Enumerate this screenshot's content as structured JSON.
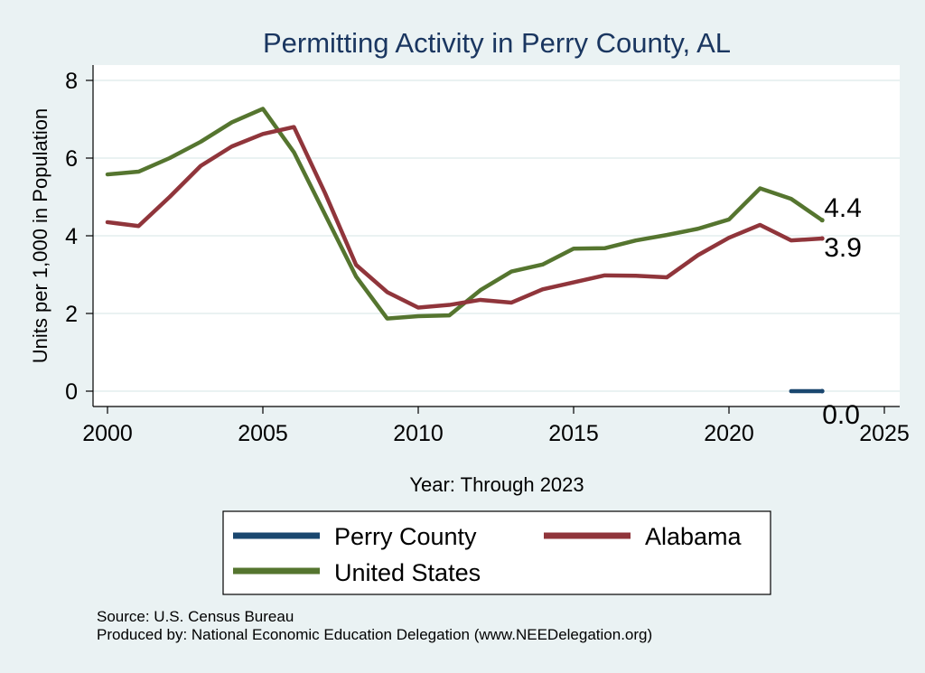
{
  "colors": {
    "background": "#eaf2f3",
    "plot_background": "#ffffff",
    "grid": "#e4eeee",
    "title": "#1a3660",
    "perry": "#1a476f",
    "alabama": "#90353b",
    "us": "#55752f"
  },
  "chart_data": {
    "type": "line",
    "title": "Permitting Activity in Perry County, AL",
    "xlabel": "Year: Through 2023",
    "ylabel": "Units per 1,000 in Population",
    "xlim": [
      2000,
      2025
    ],
    "ylim": [
      0,
      8
    ],
    "xticks": [
      2000,
      2005,
      2010,
      2015,
      2020,
      2025
    ],
    "yticks": [
      0,
      2,
      4,
      6,
      8
    ],
    "xtick_labels": [
      "2000",
      "2005",
      "2010",
      "2015",
      "2020",
      "2025"
    ],
    "ytick_labels": [
      "0",
      "2",
      "4",
      "6",
      "8"
    ],
    "grid": true,
    "legend_position": "bottom",
    "series": [
      {
        "name": "Perry County",
        "color": "#1a476f",
        "x": [
          2022,
          2023
        ],
        "values": [
          0.0,
          0.0
        ],
        "end_label": "0.0"
      },
      {
        "name": "Alabama",
        "color": "#90353b",
        "x": [
          2000,
          2001,
          2002,
          2003,
          2004,
          2005,
          2006,
          2007,
          2008,
          2009,
          2010,
          2011,
          2012,
          2013,
          2014,
          2015,
          2016,
          2017,
          2018,
          2019,
          2020,
          2021,
          2022,
          2023
        ],
        "values": [
          4.35,
          4.25,
          5.0,
          5.8,
          6.3,
          6.62,
          6.8,
          5.1,
          3.25,
          2.55,
          2.15,
          2.22,
          2.35,
          2.28,
          2.62,
          2.8,
          2.98,
          2.97,
          2.93,
          3.5,
          3.95,
          4.28,
          3.88,
          3.93
        ],
        "end_label": "3.9"
      },
      {
        "name": "United States",
        "color": "#55752f",
        "x": [
          2000,
          2001,
          2002,
          2003,
          2004,
          2005,
          2006,
          2007,
          2008,
          2009,
          2010,
          2011,
          2012,
          2013,
          2014,
          2015,
          2016,
          2017,
          2018,
          2019,
          2020,
          2021,
          2022,
          2023
        ],
        "values": [
          5.58,
          5.65,
          6.0,
          6.42,
          6.92,
          7.27,
          6.15,
          4.55,
          2.95,
          1.87,
          1.93,
          1.95,
          2.6,
          3.08,
          3.26,
          3.67,
          3.68,
          3.88,
          4.02,
          4.18,
          4.42,
          5.22,
          4.95,
          4.4
        ],
        "end_label": "4.4"
      }
    ],
    "legend": [
      "Perry County",
      "Alabama",
      "United States"
    ]
  },
  "source_note": "Source: U.S. Census Bureau",
  "produced_note": "Produced by: National Economic Education Delegation (www.NEEDelegation.org)"
}
